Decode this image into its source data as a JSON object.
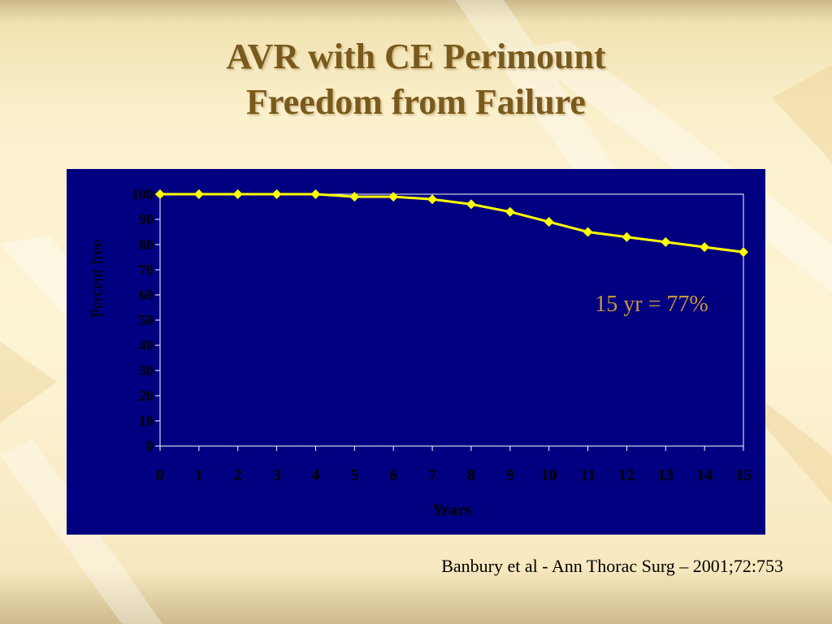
{
  "slide": {
    "title_line1": "AVR with CE Perimount",
    "title_line2": "Freedom from Failure",
    "citation": "Banbury et al - Ann Thorac Surg – 2001;72:753",
    "colors": {
      "title": "#7a5a1c",
      "chart_background": "#000080",
      "line": "#ffff00",
      "annotation": "#c8963c",
      "axis": "#ffffff",
      "axis_text": "#000000"
    }
  },
  "chart_data": {
    "type": "line",
    "title": "",
    "xlabel": "Years",
    "ylabel": "Percent free",
    "x": [
      0,
      1,
      2,
      3,
      4,
      5,
      6,
      7,
      8,
      9,
      10,
      11,
      12,
      13,
      14,
      15
    ],
    "series": [
      {
        "values": [
          100,
          100,
          100,
          100,
          100,
          99,
          99,
          98,
          96,
          93,
          89,
          85,
          83,
          81,
          79,
          77
        ]
      }
    ],
    "xlim": [
      0,
      15
    ],
    "ylim": [
      0,
      100
    ],
    "yticks": [
      0,
      10,
      20,
      30,
      40,
      50,
      60,
      70,
      80,
      90,
      100
    ],
    "xticks": [
      "0",
      "1",
      "2",
      "3",
      "4",
      "5",
      "6",
      "7",
      "8",
      "9",
      "10",
      "11",
      "12",
      "13",
      "14",
      "15"
    ],
    "grid": false,
    "marker": "diamond",
    "annotation": "15 yr = 77%"
  }
}
